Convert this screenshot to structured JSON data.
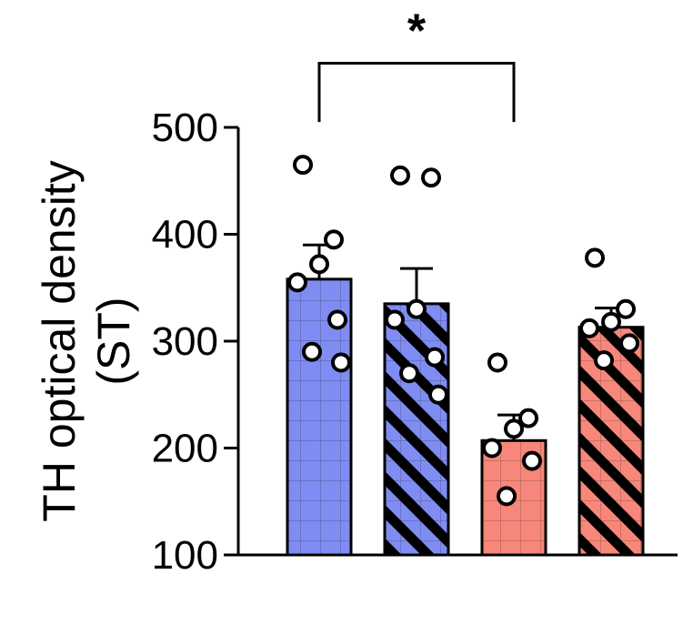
{
  "chart_data": {
    "type": "bar",
    "title": "",
    "ylabel_lines": [
      "TH optical density",
      "(ST)"
    ],
    "ylim": [
      100,
      500
    ],
    "yticks": [
      100,
      200,
      300,
      400,
      500
    ],
    "grid": false,
    "categories": [
      "",
      "",
      "",
      ""
    ],
    "bars": [
      {
        "value": 358,
        "sem": 32,
        "color": "#7F8CF2",
        "hatched": false,
        "points": [
          465,
          395,
          372,
          355,
          320,
          290,
          280
        ]
      },
      {
        "value": 335,
        "sem": 33,
        "color": "#7F8CF2",
        "hatched": true,
        "points": [
          455,
          453,
          330,
          320,
          285,
          270,
          250
        ]
      },
      {
        "value": 207,
        "sem": 24,
        "color": "#F7877A",
        "hatched": false,
        "points": [
          280,
          228,
          218,
          200,
          188,
          155
        ]
      },
      {
        "value": 313,
        "sem": 18,
        "color": "#F7877A",
        "hatched": true,
        "points": [
          378,
          330,
          318,
          312,
          298,
          282
        ]
      }
    ],
    "significance": {
      "from_bar": 0,
      "to_bar": 2,
      "label": "*",
      "level": 560
    }
  }
}
